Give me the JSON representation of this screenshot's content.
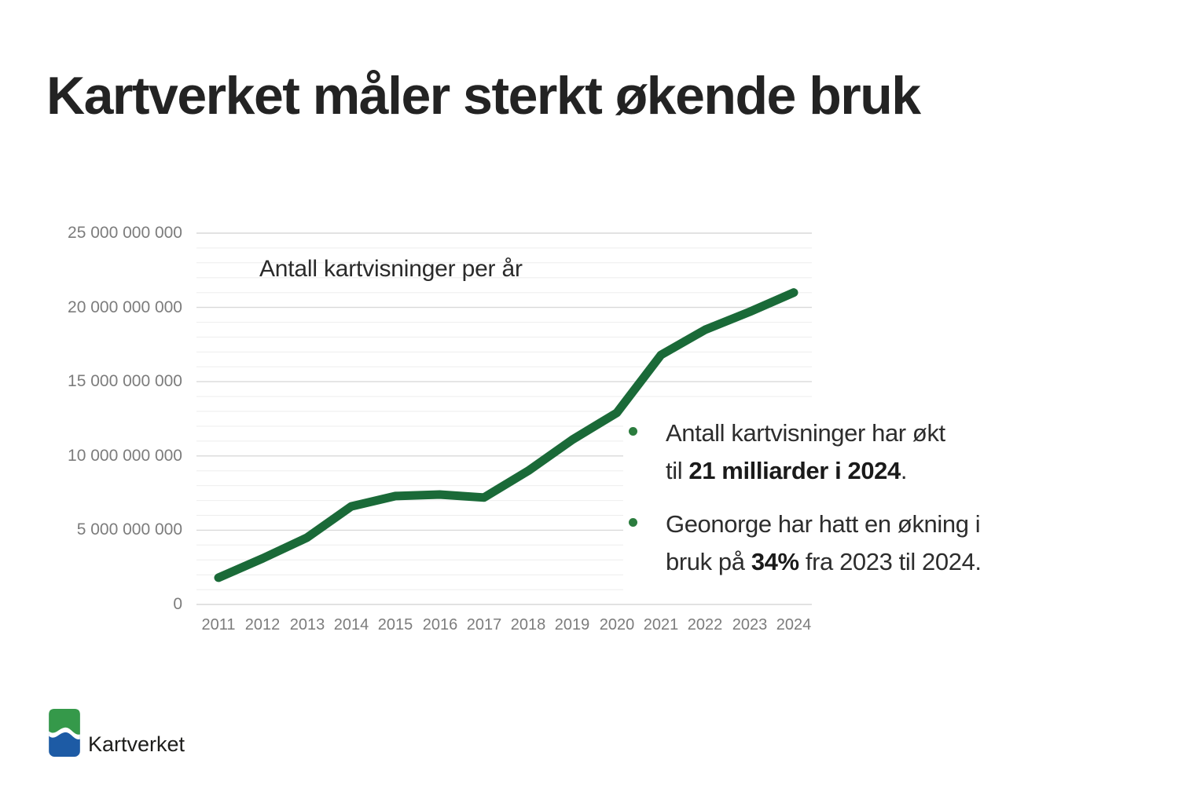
{
  "slide": {
    "title": "Kartverket måler sterkt økende bruk"
  },
  "chart": {
    "title": "Antall kartvisninger per år",
    "y_axis": [
      {
        "label": "25 000 000 000",
        "value": 25000000000
      },
      {
        "label": "20 000 000 000",
        "value": 20000000000
      },
      {
        "label": "15 000 000 000",
        "value": 15000000000
      },
      {
        "label": "10 000 000 000",
        "value": 10000000000
      },
      {
        "label": "5 000 000 000",
        "value": 5000000000
      },
      {
        "label": "0",
        "value": 0
      }
    ]
  },
  "chart_data": {
    "type": "line",
    "title": "Antall kartvisninger per år",
    "x": [
      2011,
      2012,
      2013,
      2014,
      2015,
      2016,
      2017,
      2018,
      2019,
      2020,
      2021,
      2022,
      2023,
      2024
    ],
    "values": [
      1800000000,
      3100000000,
      4500000000,
      6600000000,
      7300000000,
      7400000000,
      7200000000,
      9000000000,
      11100000000,
      12900000000,
      16800000000,
      18500000000,
      19700000000,
      21000000000
    ],
    "xlabel": "",
    "ylabel": "",
    "ylim": [
      0,
      25000000000
    ],
    "y_major_tick_interval": 5000000000,
    "y_minor_grid_interval": 1000000000,
    "grid": "horizontal",
    "legend": "none",
    "line_color": "#1a6a38"
  },
  "bullets": [
    {
      "line1": "Antall kartvisninger har økt",
      "line2_prefix": "til ",
      "line2_bold": "21 milliarder i 2024",
      "line2_suffix": "."
    },
    {
      "line1": "Geonorge har hatt en økning i",
      "line2_prefix": "bruk på ",
      "line2_bold": "34%",
      "line2_suffix": " fra 2023 til 2024."
    }
  ],
  "logo": {
    "label": "Kartverket"
  },
  "colors": {
    "title_text": "#232323",
    "body_text": "#2d2d2d",
    "axis_text": "#7c7c7c",
    "chart_title_text": "#2a2a2a",
    "grid_major": "#d9d9d9",
    "grid_minor": "#eeeeee",
    "line_green": "#1a6a38",
    "bullet_green": "#2b7c3e",
    "logo_green": "#35994a",
    "logo_blue": "#1d5ba5",
    "background": "#ffffff"
  }
}
